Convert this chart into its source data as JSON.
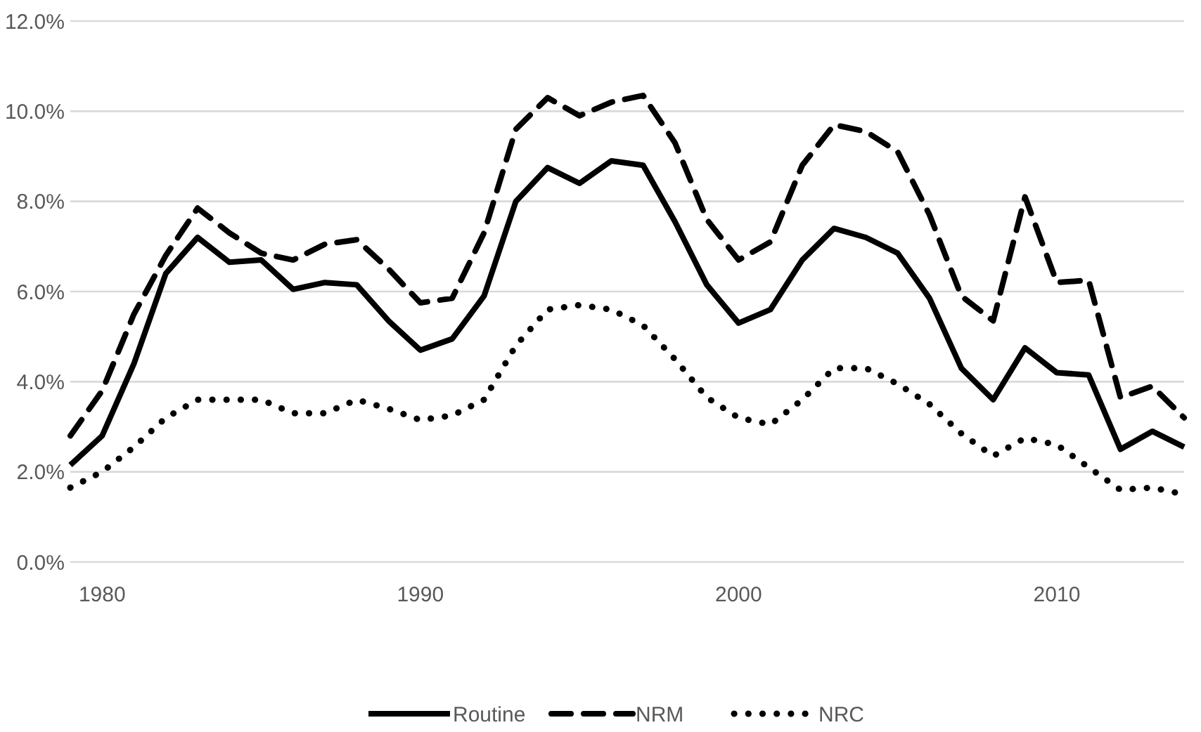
{
  "chart_data": {
    "type": "line",
    "x": [
      1979,
      1980,
      1981,
      1982,
      1983,
      1984,
      1985,
      1986,
      1987,
      1988,
      1989,
      1990,
      1991,
      1992,
      1993,
      1994,
      1995,
      1996,
      1997,
      1998,
      1999,
      2000,
      2001,
      2002,
      2003,
      2004,
      2005,
      2006,
      2007,
      2008,
      2009,
      2010,
      2011,
      2012,
      2013,
      2014
    ],
    "series": [
      {
        "name": "Routine",
        "color": "#000000",
        "line_style": "solid",
        "values": [
          2.15,
          2.8,
          4.4,
          6.4,
          7.2,
          6.65,
          6.7,
          6.05,
          6.2,
          6.15,
          5.35,
          4.7,
          4.95,
          5.9,
          8.0,
          8.75,
          8.4,
          8.9,
          8.8,
          7.55,
          6.15,
          5.3,
          5.6,
          6.7,
          7.4,
          7.2,
          6.85,
          5.85,
          4.3,
          3.6,
          4.75,
          4.2,
          4.15,
          2.5,
          2.9,
          2.55
        ]
      },
      {
        "name": "NRM",
        "color": "#000000",
        "line_style": "dashed",
        "values": [
          2.8,
          3.8,
          5.5,
          6.8,
          7.85,
          7.3,
          6.85,
          6.7,
          7.05,
          7.15,
          6.5,
          5.75,
          5.85,
          7.3,
          9.6,
          10.3,
          9.9,
          10.2,
          10.35,
          9.3,
          7.6,
          6.7,
          7.1,
          8.8,
          9.7,
          9.55,
          9.1,
          7.7,
          5.9,
          5.35,
          8.1,
          6.2,
          6.25,
          3.65,
          3.9,
          3.2
        ]
      },
      {
        "name": "NRC",
        "color": "#000000",
        "line_style": "dotted",
        "values": [
          1.65,
          2.0,
          2.55,
          3.2,
          3.6,
          3.6,
          3.6,
          3.3,
          3.3,
          3.6,
          3.4,
          3.15,
          3.25,
          3.6,
          4.8,
          5.6,
          5.7,
          5.6,
          5.25,
          4.5,
          3.65,
          3.2,
          3.05,
          3.6,
          4.3,
          4.3,
          3.95,
          3.5,
          2.85,
          2.35,
          2.75,
          2.6,
          2.1,
          1.6,
          1.65,
          1.5
        ]
      }
    ],
    "xlim": [
      1979,
      2014
    ],
    "xticks": [
      1980,
      1990,
      2000,
      2010
    ],
    "ylim": [
      0,
      12
    ],
    "yticks": [
      {
        "value": 0,
        "label": "0.0%"
      },
      {
        "value": 2,
        "label": "2.0%"
      },
      {
        "value": 4,
        "label": "4.0%"
      },
      {
        "value": 6,
        "label": "6.0%"
      },
      {
        "value": 8,
        "label": "8.0%"
      },
      {
        "value": 10,
        "label": "10.0%"
      },
      {
        "value": 12,
        "label": "12.0%"
      }
    ],
    "grid": "y",
    "legend": "bottom",
    "marker": "none"
  }
}
